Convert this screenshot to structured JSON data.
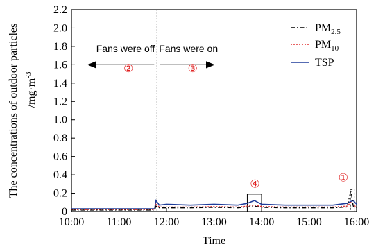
{
  "chart_data": {
    "type": "line",
    "xlabel": "Time",
    "ylabel_main": "The concentrations of outdoor particles",
    "ylabel_unit": "/mg·m",
    "ylabel_unit_sup": "-3",
    "xlim": [
      10,
      16
    ],
    "ylim": [
      0,
      2.2
    ],
    "x_ticks": [
      10,
      11,
      12,
      13,
      14,
      15,
      16
    ],
    "x_tick_labels": [
      "10:00",
      "11:00",
      "12:00",
      "13:00",
      "14:00",
      "15:00",
      "16:00"
    ],
    "y_ticks": [
      0,
      0.2,
      0.4,
      0.6,
      0.8,
      1.0,
      1.2,
      1.4,
      1.6,
      1.8,
      2.0,
      2.2
    ],
    "y_tick_labels": [
      "0",
      "0.2",
      "0.4",
      "0.6",
      "0.8",
      "1.0",
      "1.2",
      "1.4",
      "1.6",
      "1.8",
      "2.0",
      "2.2"
    ],
    "legend_position": "top-right",
    "x": [
      10.0,
      10.5,
      11.0,
      11.5,
      11.75,
      11.78,
      11.85,
      12.0,
      12.5,
      13.0,
      13.5,
      13.7,
      13.85,
      14.0,
      14.5,
      15.0,
      15.5,
      15.8,
      15.88,
      15.93,
      16.0
    ],
    "series": [
      {
        "name": "PM",
        "name_sub": "2.5",
        "color": "#000000",
        "dash": "dashdot",
        "values": [
          0.015,
          0.015,
          0.015,
          0.015,
          0.015,
          0.06,
          0.04,
          0.04,
          0.04,
          0.045,
          0.04,
          0.05,
          0.06,
          0.045,
          0.04,
          0.04,
          0.04,
          0.05,
          0.23,
          0.06,
          0.04
        ]
      },
      {
        "name": "PM",
        "name_sub": "10",
        "color": "#e03030",
        "dash": "dotted",
        "values": [
          0.02,
          0.02,
          0.02,
          0.02,
          0.02,
          0.08,
          0.05,
          0.05,
          0.05,
          0.055,
          0.05,
          0.06,
          0.07,
          0.055,
          0.05,
          0.05,
          0.05,
          0.06,
          0.1,
          0.07,
          0.05
        ]
      },
      {
        "name": "TSP",
        "color": "#1f3c9a",
        "dash": "solid",
        "values": [
          0.03,
          0.03,
          0.03,
          0.03,
          0.03,
          0.12,
          0.07,
          0.08,
          0.07,
          0.08,
          0.07,
          0.09,
          0.12,
          0.08,
          0.07,
          0.07,
          0.07,
          0.09,
          0.11,
          0.12,
          0.08
        ]
      }
    ],
    "annotations": {
      "divider_x": 11.8,
      "fans_off_label": "Fans were off",
      "fans_on_label": "Fans were on",
      "marker_1": "①",
      "marker_2": "②",
      "marker_3": "③",
      "marker_4": "④",
      "box4": {
        "x0": 13.7,
        "x1": 14.0,
        "y0": 0.0,
        "y1": 0.19
      },
      "box1": {
        "x0": 15.87,
        "x1": 15.95,
        "y0": 0.0,
        "y1": 0.24
      }
    }
  }
}
